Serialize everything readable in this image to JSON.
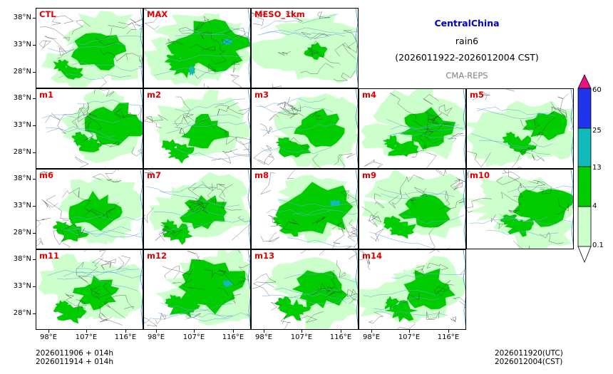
{
  "title": {
    "region": "CentralChina",
    "variable": "rain6",
    "period": "(2026011922-2026012004 CST)",
    "source": "CMA-REPS",
    "region_color": "#0000cc",
    "source_color": "#808080"
  },
  "panels": [
    {
      "label": "CTL",
      "intensity": 0.6,
      "blob": "west"
    },
    {
      "label": "MAX",
      "intensity": 1.0,
      "blob": "big"
    },
    {
      "label": "MESO_1km",
      "intensity": 0.25,
      "blob": "meso"
    },
    {
      "label": "m1",
      "intensity": 0.7,
      "blob": "east"
    },
    {
      "label": "m2",
      "intensity": 0.5,
      "blob": "west"
    },
    {
      "label": "m3",
      "intensity": 0.55,
      "blob": "center"
    },
    {
      "label": "m4",
      "intensity": 0.6,
      "blob": "center"
    },
    {
      "label": "m5",
      "intensity": 0.45,
      "blob": "east"
    },
    {
      "label": "m6",
      "intensity": 0.6,
      "blob": "west"
    },
    {
      "label": "m7",
      "intensity": 0.5,
      "blob": "west"
    },
    {
      "label": "m8",
      "intensity": 0.8,
      "blob": "big"
    },
    {
      "label": "m9",
      "intensity": 0.6,
      "blob": "center"
    },
    {
      "label": "m10",
      "intensity": 0.7,
      "blob": "east"
    },
    {
      "label": "m11",
      "intensity": 0.45,
      "blob": "west"
    },
    {
      "label": "m12",
      "intensity": 0.75,
      "blob": "big"
    },
    {
      "label": "m13",
      "intensity": 0.6,
      "blob": "center"
    },
    {
      "label": "m14",
      "intensity": 0.65,
      "blob": "center"
    }
  ],
  "y_ticks": [
    "38°N",
    "33°N",
    "28°N"
  ],
  "x_ticks": [
    "98°E",
    "107°E",
    "116°E"
  ],
  "colorbar": {
    "labels": [
      "60",
      "25",
      "13",
      "4",
      "0.1"
    ],
    "colors": [
      "#e8137f",
      "#2233ee",
      "#11bbbb",
      "#00cc00",
      "#ccffcc",
      "#ffffff"
    ]
  },
  "footer": {
    "left_line1": "2026011906  +  014h",
    "left_line2": "2026011914  +  014h",
    "right_line1": "2026011920(UTC)",
    "right_line2": "2026012004(CST)"
  }
}
